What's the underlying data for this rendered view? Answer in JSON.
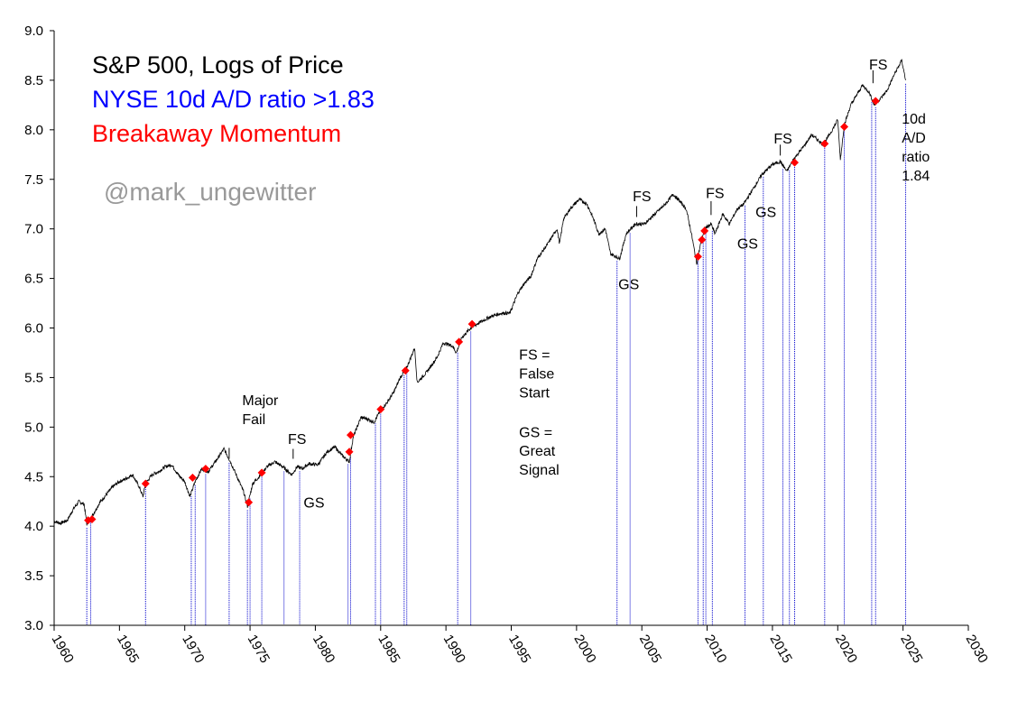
{
  "chart_data": {
    "type": "line",
    "title_lines": [
      {
        "text": "S&P 500, Logs of Price",
        "color": "#000000"
      },
      {
        "text": "NYSE 10d A/D ratio >1.83",
        "color": "#0000ff"
      },
      {
        "text": "Breakaway Momentum",
        "color": "#ff0000"
      }
    ],
    "watermark": "@mark_ungewitter",
    "xlim": [
      1960,
      2030
    ],
    "ylim": [
      3.0,
      9.0
    ],
    "x_ticks": [
      "1960",
      "1965",
      "1970",
      "1975",
      "1980",
      "1985",
      "1990",
      "1995",
      "2000",
      "2005",
      "2010",
      "2015",
      "2020",
      "2025",
      "2030"
    ],
    "y_ticks": [
      "3.0",
      "3.5",
      "4.0",
      "4.5",
      "5.0",
      "5.5",
      "6.0",
      "6.5",
      "7.0",
      "7.5",
      "8.0",
      "8.5",
      "9.0"
    ],
    "colors": {
      "price": "#000000",
      "signal_line": "#0000cc",
      "marker": "#ff0000"
    },
    "series": [
      {
        "name": "S&P 500 log price",
        "points": [
          [
            1960.0,
            4.05
          ],
          [
            1960.5,
            4.03
          ],
          [
            1961.0,
            4.06
          ],
          [
            1961.5,
            4.18
          ],
          [
            1961.9,
            4.25
          ],
          [
            1962.3,
            4.22
          ],
          [
            1962.5,
            4.02
          ],
          [
            1962.9,
            4.1
          ],
          [
            1963.5,
            4.24
          ],
          [
            1964.0,
            4.32
          ],
          [
            1964.5,
            4.4
          ],
          [
            1965.0,
            4.45
          ],
          [
            1965.5,
            4.48
          ],
          [
            1966.0,
            4.52
          ],
          [
            1966.5,
            4.4
          ],
          [
            1966.8,
            4.3
          ],
          [
            1967.0,
            4.43
          ],
          [
            1967.5,
            4.52
          ],
          [
            1968.0,
            4.55
          ],
          [
            1968.5,
            4.6
          ],
          [
            1969.0,
            4.62
          ],
          [
            1969.5,
            4.52
          ],
          [
            1970.0,
            4.45
          ],
          [
            1970.4,
            4.3
          ],
          [
            1970.8,
            4.45
          ],
          [
            1971.3,
            4.58
          ],
          [
            1971.8,
            4.55
          ],
          [
            1972.5,
            4.68
          ],
          [
            1973.0,
            4.78
          ],
          [
            1973.5,
            4.65
          ],
          [
            1974.0,
            4.5
          ],
          [
            1974.5,
            4.35
          ],
          [
            1974.8,
            4.2
          ],
          [
            1975.2,
            4.43
          ],
          [
            1975.7,
            4.5
          ],
          [
            1976.3,
            4.6
          ],
          [
            1976.9,
            4.65
          ],
          [
            1977.5,
            4.6
          ],
          [
            1978.2,
            4.52
          ],
          [
            1978.6,
            4.6
          ],
          [
            1979.0,
            4.58
          ],
          [
            1979.5,
            4.63
          ],
          [
            1980.2,
            4.62
          ],
          [
            1980.9,
            4.75
          ],
          [
            1981.5,
            4.8
          ],
          [
            1982.0,
            4.72
          ],
          [
            1982.6,
            4.65
          ],
          [
            1982.9,
            4.9
          ],
          [
            1983.5,
            5.1
          ],
          [
            1984.0,
            5.08
          ],
          [
            1984.5,
            5.05
          ],
          [
            1985.0,
            5.17
          ],
          [
            1985.5,
            5.25
          ],
          [
            1986.0,
            5.35
          ],
          [
            1986.5,
            5.5
          ],
          [
            1987.0,
            5.6
          ],
          [
            1987.6,
            5.8
          ],
          [
            1987.8,
            5.45
          ],
          [
            1988.5,
            5.55
          ],
          [
            1989.3,
            5.7
          ],
          [
            1989.8,
            5.85
          ],
          [
            1990.5,
            5.82
          ],
          [
            1990.8,
            5.75
          ],
          [
            1991.2,
            5.9
          ],
          [
            1991.9,
            6.0
          ],
          [
            1992.5,
            6.05
          ],
          [
            1993.5,
            6.12
          ],
          [
            1994.3,
            6.15
          ],
          [
            1994.9,
            6.15
          ],
          [
            1995.5,
            6.35
          ],
          [
            1996.0,
            6.45
          ],
          [
            1996.5,
            6.52
          ],
          [
            1997.0,
            6.7
          ],
          [
            1997.8,
            6.85
          ],
          [
            1998.5,
            7.0
          ],
          [
            1998.7,
            6.85
          ],
          [
            1999.0,
            7.1
          ],
          [
            1999.5,
            7.2
          ],
          [
            2000.2,
            7.3
          ],
          [
            2000.8,
            7.25
          ],
          [
            2001.3,
            7.1
          ],
          [
            2001.7,
            6.95
          ],
          [
            2002.2,
            7.0
          ],
          [
            2002.6,
            6.75
          ],
          [
            2003.0,
            6.72
          ],
          [
            2003.3,
            6.7
          ],
          [
            2003.8,
            6.95
          ],
          [
            2004.5,
            7.05
          ],
          [
            2005.2,
            7.05
          ],
          [
            2006.0,
            7.15
          ],
          [
            2006.8,
            7.25
          ],
          [
            2007.4,
            7.35
          ],
          [
            2007.9,
            7.28
          ],
          [
            2008.4,
            7.2
          ],
          [
            2008.8,
            6.95
          ],
          [
            2009.2,
            6.65
          ],
          [
            2009.5,
            6.85
          ],
          [
            2009.8,
            7.0
          ],
          [
            2010.3,
            7.05
          ],
          [
            2010.6,
            6.95
          ],
          [
            2011.2,
            7.15
          ],
          [
            2011.7,
            7.05
          ],
          [
            2012.3,
            7.2
          ],
          [
            2012.8,
            7.25
          ],
          [
            2013.5,
            7.4
          ],
          [
            2014.2,
            7.55
          ],
          [
            2015.0,
            7.65
          ],
          [
            2015.6,
            7.68
          ],
          [
            2016.1,
            7.58
          ],
          [
            2016.6,
            7.7
          ],
          [
            2017.5,
            7.85
          ],
          [
            2018.0,
            7.95
          ],
          [
            2018.9,
            7.85
          ],
          [
            2019.5,
            7.98
          ],
          [
            2020.0,
            8.1
          ],
          [
            2020.2,
            7.7
          ],
          [
            2020.5,
            8.05
          ],
          [
            2021.0,
            8.25
          ],
          [
            2021.9,
            8.45
          ],
          [
            2022.4,
            8.38
          ],
          [
            2022.8,
            8.25
          ],
          [
            2023.3,
            8.32
          ],
          [
            2023.8,
            8.4
          ],
          [
            2024.3,
            8.55
          ],
          [
            2024.9,
            8.7
          ],
          [
            2025.2,
            8.5
          ]
        ]
      }
    ],
    "signals": [
      {
        "x": 1962.6,
        "y": 4.06
      },
      {
        "x": 1962.9,
        "y": 4.07
      },
      {
        "x": 1967.0,
        "y": 4.43
      },
      {
        "x": 1970.6,
        "y": 4.49
      },
      {
        "x": 1971.6,
        "y": 4.58
      },
      {
        "x": 1974.9,
        "y": 4.24
      },
      {
        "x": 1975.9,
        "y": 4.54
      },
      {
        "x": 1982.6,
        "y": 4.75
      },
      {
        "x": 1982.7,
        "y": 4.92
      },
      {
        "x": 1985.0,
        "y": 5.18
      },
      {
        "x": 1986.9,
        "y": 5.57
      },
      {
        "x": 1991.0,
        "y": 5.86
      },
      {
        "x": 1992.0,
        "y": 6.04
      },
      {
        "x": 2009.3,
        "y": 6.72
      },
      {
        "x": 2009.6,
        "y": 6.89
      },
      {
        "x": 2009.8,
        "y": 6.98
      },
      {
        "x": 2016.7,
        "y": 7.67
      },
      {
        "x": 2019.0,
        "y": 7.86
      },
      {
        "x": 2020.5,
        "y": 8.03
      },
      {
        "x": 2022.9,
        "y": 8.29
      }
    ],
    "signal_lines_x": [
      1962.5,
      1962.8,
      1967.0,
      1970.5,
      1970.8,
      1971.6,
      1973.4,
      1974.8,
      1975.0,
      1975.9,
      1977.6,
      1978.8,
      1982.5,
      1982.7,
      1984.6,
      1985.0,
      1986.8,
      1987.0,
      1990.9,
      1991.9,
      2003.1,
      2004.1,
      2009.3,
      2009.7,
      2009.9,
      2010.4,
      2012.9,
      2014.3,
      2015.8,
      2016.3,
      2016.7,
      2019.0,
      2020.5,
      2022.6,
      2022.9,
      2025.2
    ],
    "annotations": [
      {
        "text": "Major",
        "x": 1974.4,
        "y": 5.22
      },
      {
        "text": "Fail",
        "x": 1974.4,
        "y": 5.03
      },
      {
        "text": "FS",
        "x": 1977.9,
        "y": 4.83
      },
      {
        "text": "GS",
        "x": 1979.1,
        "y": 4.19
      },
      {
        "text": "FS =",
        "x": 1995.6,
        "y": 5.68
      },
      {
        "text": "False",
        "x": 1995.6,
        "y": 5.49
      },
      {
        "text": "Start",
        "x": 1995.6,
        "y": 5.3
      },
      {
        "text": "GS =",
        "x": 1995.6,
        "y": 4.9
      },
      {
        "text": "Great",
        "x": 1995.6,
        "y": 4.71
      },
      {
        "text": "Signal",
        "x": 1995.6,
        "y": 4.52
      },
      {
        "text": "GS",
        "x": 2003.2,
        "y": 6.39
      },
      {
        "text": "FS",
        "x": 2004.3,
        "y": 7.28
      },
      {
        "text": "FS",
        "x": 2009.9,
        "y": 7.31
      },
      {
        "text": "GS",
        "x": 2012.3,
        "y": 6.8
      },
      {
        "text": "GS",
        "x": 2013.7,
        "y": 7.12
      },
      {
        "text": "FS",
        "x": 2015.1,
        "y": 7.86
      },
      {
        "text": "FS",
        "x": 2022.4,
        "y": 8.61
      },
      {
        "text": "10d",
        "x": 2024.9,
        "y": 8.06
      },
      {
        "text": "A/D",
        "x": 2024.9,
        "y": 7.87
      },
      {
        "text": "ratio",
        "x": 2024.9,
        "y": 7.68
      },
      {
        "text": "1.84",
        "x": 2024.9,
        "y": 7.49
      }
    ],
    "grid": false
  }
}
